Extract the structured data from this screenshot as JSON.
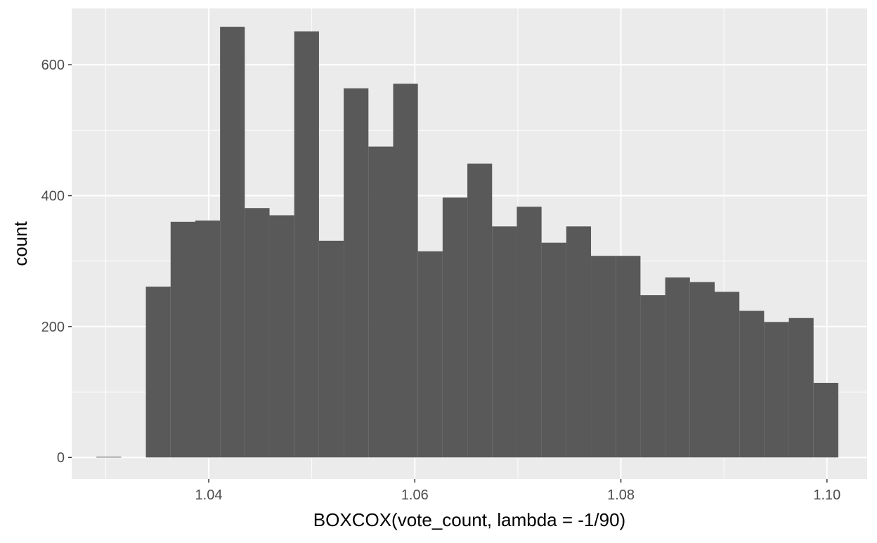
{
  "chart_data": {
    "type": "bar",
    "subtype": "histogram",
    "xlabel": "BOXCOX(vote_count, lambda = -1/90)",
    "ylabel": "count",
    "xlim": [
      1.0267,
      1.1039
    ],
    "ylim": [
      -33,
      686
    ],
    "x_ticks": [
      {
        "value": 1.04,
        "label": "1.04"
      },
      {
        "value": 1.06,
        "label": "1.06"
      },
      {
        "value": 1.08,
        "label": "1.08"
      },
      {
        "value": 1.1,
        "label": "1.10"
      }
    ],
    "y_ticks": [
      {
        "value": 0,
        "label": "0"
      },
      {
        "value": 200,
        "label": "200"
      },
      {
        "value": 400,
        "label": "400"
      },
      {
        "value": 600,
        "label": "600"
      }
    ],
    "bin_width": 0.0024,
    "bins": [
      {
        "x0": 1.0291,
        "x1": 1.0315,
        "count": 1
      },
      {
        "x0": 1.0315,
        "x1": 1.0339,
        "count": 0
      },
      {
        "x0": 1.0339,
        "x1": 1.0363,
        "count": 261
      },
      {
        "x0": 1.0363,
        "x1": 1.0387,
        "count": 360
      },
      {
        "x0": 1.0387,
        "x1": 1.0411,
        "count": 362
      },
      {
        "x0": 1.0411,
        "x1": 1.0435,
        "count": 658
      },
      {
        "x0": 1.0435,
        "x1": 1.0459,
        "count": 381
      },
      {
        "x0": 1.0459,
        "x1": 1.0483,
        "count": 370
      },
      {
        "x0": 1.0483,
        "x1": 1.0507,
        "count": 651
      },
      {
        "x0": 1.0507,
        "x1": 1.0531,
        "count": 331
      },
      {
        "x0": 1.0531,
        "x1": 1.0555,
        "count": 564
      },
      {
        "x0": 1.0555,
        "x1": 1.0579,
        "count": 475
      },
      {
        "x0": 1.0579,
        "x1": 1.0603,
        "count": 571
      },
      {
        "x0": 1.0603,
        "x1": 1.0627,
        "count": 315
      },
      {
        "x0": 1.0627,
        "x1": 1.0651,
        "count": 397
      },
      {
        "x0": 1.0651,
        "x1": 1.0675,
        "count": 449
      },
      {
        "x0": 1.0675,
        "x1": 1.0699,
        "count": 353
      },
      {
        "x0": 1.0699,
        "x1": 1.0723,
        "count": 383
      },
      {
        "x0": 1.0723,
        "x1": 1.0747,
        "count": 328
      },
      {
        "x0": 1.0747,
        "x1": 1.0771,
        "count": 353
      },
      {
        "x0": 1.0771,
        "x1": 1.0795,
        "count": 308
      },
      {
        "x0": 1.0795,
        "x1": 1.0819,
        "count": 308
      },
      {
        "x0": 1.0819,
        "x1": 1.0843,
        "count": 248
      },
      {
        "x0": 1.0843,
        "x1": 1.0867,
        "count": 275
      },
      {
        "x0": 1.0867,
        "x1": 1.0891,
        "count": 268
      },
      {
        "x0": 1.0891,
        "x1": 1.0915,
        "count": 253
      },
      {
        "x0": 1.0915,
        "x1": 1.0939,
        "count": 224
      },
      {
        "x0": 1.0939,
        "x1": 1.0963,
        "count": 207
      },
      {
        "x0": 1.0963,
        "x1": 1.0987,
        "count": 213
      },
      {
        "x0": 1.0987,
        "x1": 1.1011,
        "count": 114
      }
    ],
    "grid": true,
    "legend": "none",
    "colors": {
      "panel_background": "#ebebeb",
      "grid_major": "#ffffff",
      "bar_fill": "#595959"
    }
  }
}
